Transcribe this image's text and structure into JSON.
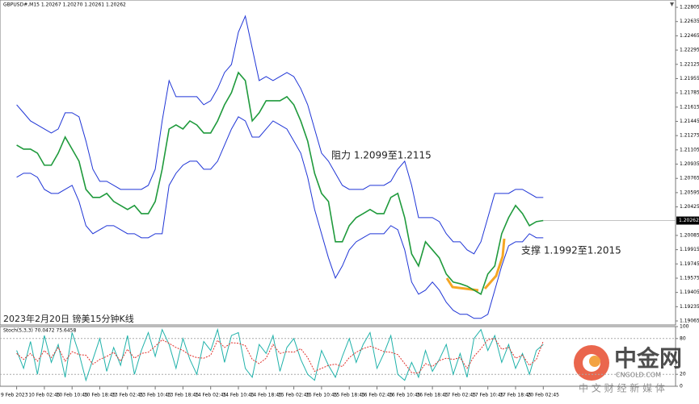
{
  "chart_data": [
    {
      "type": "line",
      "header": "GBPUSD#,M15  1.20267 1.20270 1.20261 1.20262",
      "title": "2023年2月20日 镑美15分钟K线",
      "annotations": [
        {
          "text": "阻力 1.2099至1.2115"
        },
        {
          "text": "支撑 1.1992至1.2015"
        }
      ],
      "categories": [
        "9 Feb 2023",
        null,
        null,
        null,
        "10 Feb 02:45",
        null,
        null,
        null,
        "10 Feb 10:45",
        null,
        null,
        null,
        "10 Feb 18:45",
        null,
        null,
        null,
        "13 Feb 02:45",
        null,
        null,
        null,
        "13 Feb 10:45",
        null,
        null,
        null,
        "13 Feb 18:45",
        null,
        null,
        null,
        "14 Feb 02:45",
        null,
        null,
        null,
        "14 Feb 10:45",
        null,
        null,
        null,
        "14 Feb 18:45",
        null,
        null,
        null,
        "15 Feb 02:45",
        null,
        null,
        null,
        "15 Feb 10:45",
        null,
        null,
        null,
        "15 Feb 18:45",
        null,
        null,
        null,
        "16 Feb 02:45",
        null,
        null,
        null,
        "16 Feb 10:45",
        null,
        null,
        null,
        "16 Feb 18:45",
        null,
        null,
        null,
        "17 Feb 02:45",
        null,
        null,
        null,
        "17 Feb 10:45",
        null,
        null,
        null,
        "17 Feb 18:45",
        null,
        null,
        null,
        "20 Feb 02:45"
      ],
      "series": [
        {
          "color": "#1f9a3c",
          "values": [
            1.21162,
            1.21114,
            1.21114,
            1.21066,
            1.20922,
            1.20922,
            1.21066,
            1.21258,
            1.21114,
            1.2097,
            1.20634,
            1.20538,
            1.20538,
            1.20586,
            1.2049,
            1.20442,
            1.20394,
            1.20442,
            1.20345,
            1.20345,
            1.2049,
            1.20874,
            1.21354,
            1.21402,
            1.21354,
            1.2145,
            1.21402,
            1.21306,
            1.21306,
            1.2145,
            1.21643,
            1.21787,
            1.22027,
            1.21931,
            1.2145,
            1.21547,
            1.21691,
            1.21691,
            1.21691,
            1.21739,
            1.21643,
            1.2145,
            1.2121,
            1.20826,
            1.20586,
            1.2049,
            1.20009,
            1.20009,
            1.20201,
            1.20297,
            1.20345,
            1.20394,
            1.20345,
            1.20345,
            1.20538,
            1.20586,
            1.20297,
            1.19865,
            1.19721,
            1.20009,
            1.19913,
            1.19817,
            1.19625,
            1.19529,
            1.19509,
            1.1948,
            1.19432,
            1.19384,
            1.19625,
            1.19721,
            1.20105,
            1.20297,
            1.20442,
            1.20345,
            1.20201,
            1.20249,
            1.20262
          ]
        },
        {
          "color": "#1f35d6",
          "values": [
            1.21643,
            1.21547,
            1.2145,
            1.21402,
            1.21354,
            1.21306,
            1.21354,
            1.21547,
            1.21547,
            1.21499,
            1.2121,
            1.20874,
            1.2073,
            1.2073,
            1.20682,
            1.20634,
            1.20634,
            1.20634,
            1.20634,
            1.20682,
            1.20874,
            1.2145,
            1.21931,
            1.21739,
            1.21739,
            1.21739,
            1.21739,
            1.21643,
            1.21691,
            1.21835,
            1.22027,
            1.22123,
            1.22508,
            1.227,
            1.22315,
            1.21931,
            1.21979,
            1.21931,
            1.21979,
            1.22027,
            1.21979,
            1.21835,
            1.21643,
            1.21354,
            1.21066,
            1.2097,
            1.20826,
            1.20682,
            1.20634,
            1.20634,
            1.20634,
            1.20682,
            1.20682,
            1.20682,
            1.2073,
            1.20874,
            1.2097,
            1.20682,
            1.20297,
            1.20297,
            1.20297,
            1.20249,
            1.20105,
            1.20009,
            1.20009,
            1.19913,
            1.19865,
            1.20009,
            1.20297,
            1.20586,
            1.20586,
            1.20586,
            1.20634,
            1.20634,
            1.20586,
            1.20538,
            1.20538
          ]
        },
        {
          "color": "#1f35d6",
          "values": [
            1.20778,
            1.20826,
            1.20826,
            1.20778,
            1.20634,
            1.20586,
            1.20586,
            1.20634,
            1.20682,
            1.2049,
            1.20201,
            1.20105,
            1.20153,
            1.20201,
            1.20201,
            1.20153,
            1.20105,
            1.20105,
            1.20057,
            1.20057,
            1.20105,
            1.20105,
            1.20682,
            1.20826,
            1.20922,
            1.2097,
            1.2097,
            1.20874,
            1.20874,
            1.2097,
            1.21162,
            1.21354,
            1.21499,
            1.2145,
            1.21258,
            1.21258,
            1.21354,
            1.2145,
            1.21402,
            1.21354,
            1.2121,
            1.21066,
            1.20778,
            1.20394,
            1.20105,
            1.19817,
            1.19577,
            1.19721,
            1.19913,
            1.20009,
            1.20057,
            1.20105,
            1.20105,
            1.20105,
            1.20201,
            1.20153,
            1.19913,
            1.19529,
            1.19384,
            1.19432,
            1.19529,
            1.19432,
            1.19288,
            1.19192,
            1.19144,
            1.19144,
            1.19096,
            1.19096,
            1.19144,
            1.19432,
            1.19721,
            1.19961,
            1.20009,
            1.20009,
            1.20105,
            1.20057,
            1.20057
          ]
        }
      ],
      "ylim": [
        1.19017,
        1.22892
      ],
      "yticks": [
        1.22805,
        1.22635,
        1.22465,
        1.22295,
        1.22125,
        1.21955,
        1.21785,
        1.21615,
        1.21445,
        1.21275,
        1.21105,
        1.20935,
        1.20765,
        1.20595,
        1.20425,
        1.20085,
        1.19915,
        1.19745,
        1.19575,
        1.19405,
        1.19235,
        1.19065
      ],
      "last_price": 1.20262
    },
    {
      "type": "line",
      "label": "Stoch(5,3,3) 70.0472 75.6458",
      "series": [
        {
          "color": "#20b2aa",
          "values": [
            60,
            30,
            75,
            20,
            85,
            40,
            70,
            15,
            90,
            55,
            10,
            45,
            80,
            25,
            65,
            35,
            85,
            20,
            60,
            90,
            50,
            95,
            70,
            30,
            80,
            45,
            20,
            75,
            60,
            95,
            40,
            85,
            90,
            30,
            15,
            70,
            55,
            85,
            25,
            65,
            80,
            45,
            20,
            10,
            60,
            35,
            15,
            50,
            80,
            40,
            70,
            90,
            30,
            55,
            85,
            20,
            10,
            40,
            15,
            60,
            25,
            45,
            70,
            20,
            55,
            15,
            80,
            95,
            60,
            85,
            40,
            70,
            30,
            55,
            20,
            60,
            70.0472
          ]
        },
        {
          "color": "#e0302a",
          "values": [
            55,
            45,
            55,
            42,
            60,
            48,
            65,
            42,
            58,
            53,
            52,
            37,
            45,
            50,
            57,
            42,
            62,
            47,
            55,
            57,
            67,
            78,
            72,
            65,
            60,
            52,
            48,
            47,
            52,
            77,
            65,
            73,
            72,
            68,
            45,
            38,
            47,
            70,
            55,
            58,
            57,
            63,
            48,
            25,
            30,
            35,
            37,
            33,
            48,
            57,
            63,
            67,
            63,
            58,
            57,
            53,
            38,
            23,
            22,
            38,
            33,
            43,
            47,
            45,
            48,
            30,
            50,
            63,
            78,
            80,
            62,
            65,
            47,
            52,
            35,
            45,
            75.6458
          ]
        }
      ],
      "ylim": [
        0,
        100
      ],
      "yticks": [
        0,
        20,
        80,
        100
      ]
    }
  ],
  "watermark": {
    "name": "中金网",
    "site": "CNGOLD.COM",
    "slogan": "中 文 财 经 新 媒 体"
  }
}
